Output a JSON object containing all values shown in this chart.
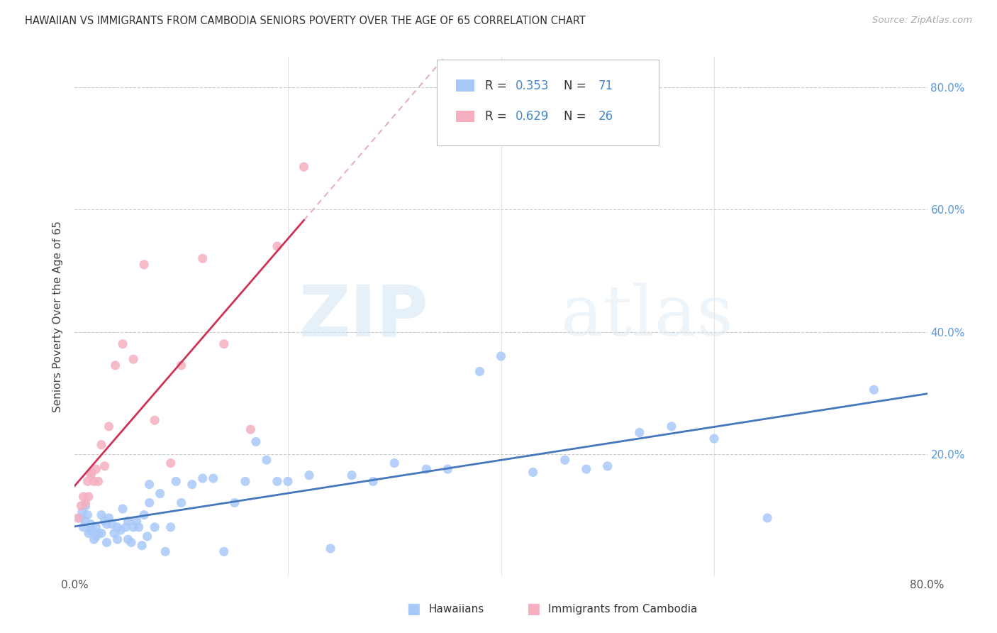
{
  "title": "HAWAIIAN VS IMMIGRANTS FROM CAMBODIA SENIORS POVERTY OVER THE AGE OF 65 CORRELATION CHART",
  "source": "Source: ZipAtlas.com",
  "ylabel": "Seniors Poverty Over the Age of 65",
  "xlim": [
    0.0,
    0.8
  ],
  "ylim": [
    0.0,
    0.85
  ],
  "watermark_zip": "ZIP",
  "watermark_atlas": "atlas",
  "hawaiians_color": "#a8c8f8",
  "cambodia_color": "#f5afc0",
  "trendline_hawaii_color": "#4477bb",
  "trendline_cambodia_color": "#cc3355",
  "trendline_dashed_color": "#e8b0be",
  "R_hawaii": 0.353,
  "N_hawaii": 71,
  "R_cambodia": 0.629,
  "N_cambodia": 26,
  "hawaiians_x": [
    0.005,
    0.007,
    0.008,
    0.01,
    0.01,
    0.012,
    0.013,
    0.015,
    0.015,
    0.018,
    0.02,
    0.02,
    0.022,
    0.025,
    0.025,
    0.028,
    0.03,
    0.03,
    0.032,
    0.035,
    0.037,
    0.04,
    0.04,
    0.043,
    0.045,
    0.048,
    0.05,
    0.05,
    0.053,
    0.055,
    0.058,
    0.06,
    0.063,
    0.065,
    0.068,
    0.07,
    0.07,
    0.075,
    0.08,
    0.085,
    0.09,
    0.095,
    0.1,
    0.11,
    0.12,
    0.13,
    0.14,
    0.15,
    0.16,
    0.17,
    0.18,
    0.19,
    0.2,
    0.22,
    0.24,
    0.26,
    0.28,
    0.3,
    0.33,
    0.35,
    0.38,
    0.4,
    0.43,
    0.46,
    0.48,
    0.5,
    0.53,
    0.56,
    0.6,
    0.65,
    0.75
  ],
  "hawaiians_y": [
    0.095,
    0.105,
    0.08,
    0.09,
    0.115,
    0.1,
    0.07,
    0.085,
    0.075,
    0.06,
    0.08,
    0.065,
    0.07,
    0.1,
    0.07,
    0.09,
    0.085,
    0.055,
    0.095,
    0.085,
    0.07,
    0.08,
    0.06,
    0.075,
    0.11,
    0.08,
    0.09,
    0.06,
    0.055,
    0.08,
    0.09,
    0.08,
    0.05,
    0.1,
    0.065,
    0.15,
    0.12,
    0.08,
    0.135,
    0.04,
    0.08,
    0.155,
    0.12,
    0.15,
    0.16,
    0.16,
    0.04,
    0.12,
    0.155,
    0.22,
    0.19,
    0.155,
    0.155,
    0.165,
    0.045,
    0.165,
    0.155,
    0.185,
    0.175,
    0.175,
    0.335,
    0.36,
    0.17,
    0.19,
    0.175,
    0.18,
    0.235,
    0.245,
    0.225,
    0.095,
    0.305
  ],
  "cambodia_x": [
    0.003,
    0.006,
    0.008,
    0.01,
    0.012,
    0.013,
    0.015,
    0.016,
    0.018,
    0.02,
    0.022,
    0.025,
    0.028,
    0.032,
    0.038,
    0.045,
    0.055,
    0.065,
    0.075,
    0.09,
    0.1,
    0.12,
    0.14,
    0.165,
    0.19,
    0.215
  ],
  "cambodia_y": [
    0.095,
    0.115,
    0.13,
    0.12,
    0.155,
    0.13,
    0.165,
    0.17,
    0.155,
    0.175,
    0.155,
    0.215,
    0.18,
    0.245,
    0.345,
    0.38,
    0.355,
    0.51,
    0.255,
    0.185,
    0.345,
    0.52,
    0.38,
    0.24,
    0.54,
    0.67
  ]
}
